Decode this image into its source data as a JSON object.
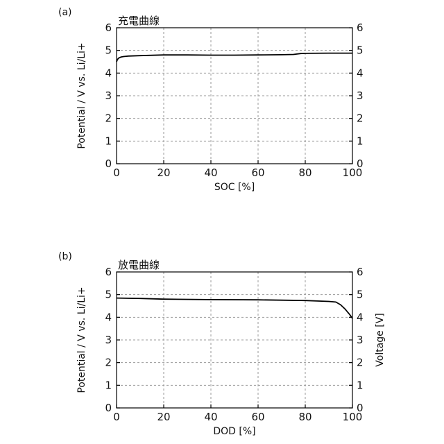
{
  "chart_data": [
    {
      "panel_label": "(a)",
      "type": "line",
      "title": "充電曲線",
      "xlabel": "SOC [%]",
      "ylabel_left": "Potential / V vs. Li/Li+",
      "ylabel_right": "",
      "xlim": [
        0,
        100
      ],
      "ylim": [
        0,
        6
      ],
      "xticks": [
        0,
        20,
        40,
        60,
        80,
        100
      ],
      "yticks": [
        0,
        1,
        2,
        3,
        4,
        5,
        6
      ],
      "grid": true,
      "series": [
        {
          "x": [
            0,
            0.3,
            0.7,
            1.2,
            2,
            3,
            5,
            10,
            20,
            30,
            40,
            50,
            60,
            70,
            75,
            78,
            80,
            90,
            100
          ],
          "y": [
            4.5,
            4.58,
            4.64,
            4.68,
            4.71,
            4.73,
            4.75,
            4.77,
            4.8,
            4.8,
            4.79,
            4.79,
            4.8,
            4.81,
            4.82,
            4.86,
            4.87,
            4.88,
            4.88
          ]
        }
      ]
    },
    {
      "panel_label": "(b)",
      "type": "line",
      "title": "放電曲線",
      "xlabel": "DOD [%]",
      "ylabel_left": "Potential / V vs. Li/Li+",
      "ylabel_right": "Voltage [V]",
      "xlim": [
        0,
        100
      ],
      "ylim": [
        0,
        6
      ],
      "xticks": [
        0,
        20,
        40,
        60,
        80,
        100
      ],
      "yticks": [
        0,
        1,
        2,
        3,
        4,
        5,
        6
      ],
      "grid": true,
      "series": [
        {
          "x": [
            0,
            10,
            20,
            40,
            60,
            80,
            90,
            93,
            95,
            97,
            99,
            100
          ],
          "y": [
            4.85,
            4.83,
            4.8,
            4.78,
            4.77,
            4.74,
            4.7,
            4.67,
            4.55,
            4.35,
            4.1,
            3.95
          ]
        }
      ]
    }
  ]
}
